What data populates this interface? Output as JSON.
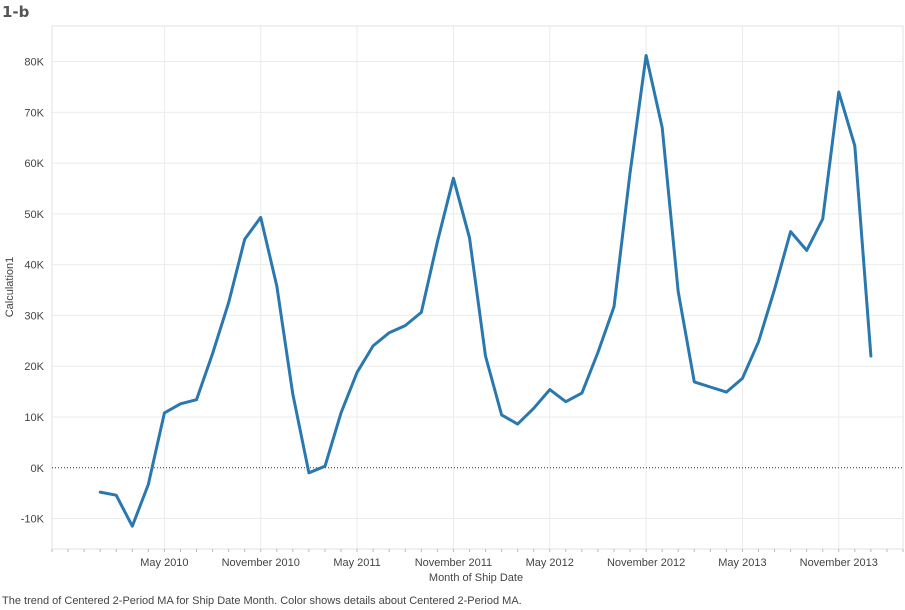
{
  "sheet": {
    "title": "1-b",
    "caption": "The trend of Centered 2-Period MA for Ship Date Month.  Color shows details about Centered 2-Period MA."
  },
  "chart_data": {
    "type": "line",
    "title": "",
    "xlabel": "Month of Ship Date",
    "ylabel": "Calculation1",
    "ylim": [
      -16000,
      87000
    ],
    "y_ticks": [
      -10000,
      0,
      10000,
      20000,
      30000,
      40000,
      50000,
      60000,
      70000,
      80000
    ],
    "y_tick_labels": [
      "-10K",
      "0K",
      "10K",
      "20K",
      "30K",
      "40K",
      "50K",
      "60K",
      "70K",
      "80K"
    ],
    "x_range": [
      "2009-10",
      "2014-03"
    ],
    "x_ticks": [
      "2010-05",
      "2010-11",
      "2011-05",
      "2011-11",
      "2012-05",
      "2012-11",
      "2013-05",
      "2013-11"
    ],
    "x_tick_labels": [
      "May 2010",
      "November 2010",
      "May 2011",
      "November 2011",
      "May 2012",
      "November 2012",
      "May 2013",
      "November 2013"
    ],
    "grid": true,
    "zero_line": "dotted",
    "line_color": "#2a78ae",
    "series": [
      {
        "x": [
          "2010-01",
          "2010-02",
          "2010-03",
          "2010-04",
          "2010-05",
          "2010-06",
          "2010-07",
          "2010-08",
          "2010-09",
          "2010-10",
          "2010-11",
          "2010-12",
          "2011-01",
          "2011-02",
          "2011-03",
          "2011-04",
          "2011-05",
          "2011-06",
          "2011-07",
          "2011-08",
          "2011-09",
          "2011-10",
          "2011-11",
          "2011-12",
          "2012-01",
          "2012-02",
          "2012-03",
          "2012-04",
          "2012-05",
          "2012-06",
          "2012-07",
          "2012-08",
          "2012-09",
          "2012-10",
          "2012-11",
          "2012-12",
          "2013-01",
          "2013-02",
          "2013-03",
          "2013-04",
          "2013-05",
          "2013-06",
          "2013-07",
          "2013-08",
          "2013-09",
          "2013-10",
          "2013-11",
          "2013-12",
          "2014-01"
        ],
        "values": [
          -4800,
          -5400,
          -11500,
          -3300,
          10800,
          12600,
          13400,
          22500,
          32500,
          45000,
          49300,
          35800,
          14500,
          -1000,
          300,
          10800,
          18800,
          24000,
          26600,
          28000,
          30600,
          44500,
          57000,
          45300,
          22000,
          10400,
          8600,
          11700,
          15400,
          13000,
          14700,
          22700,
          31700,
          58000,
          81200,
          67000,
          34700,
          16900,
          15900,
          14900,
          17600,
          24800,
          35100,
          46500,
          42800,
          49000,
          74000,
          63400,
          22000
        ]
      }
    ]
  }
}
